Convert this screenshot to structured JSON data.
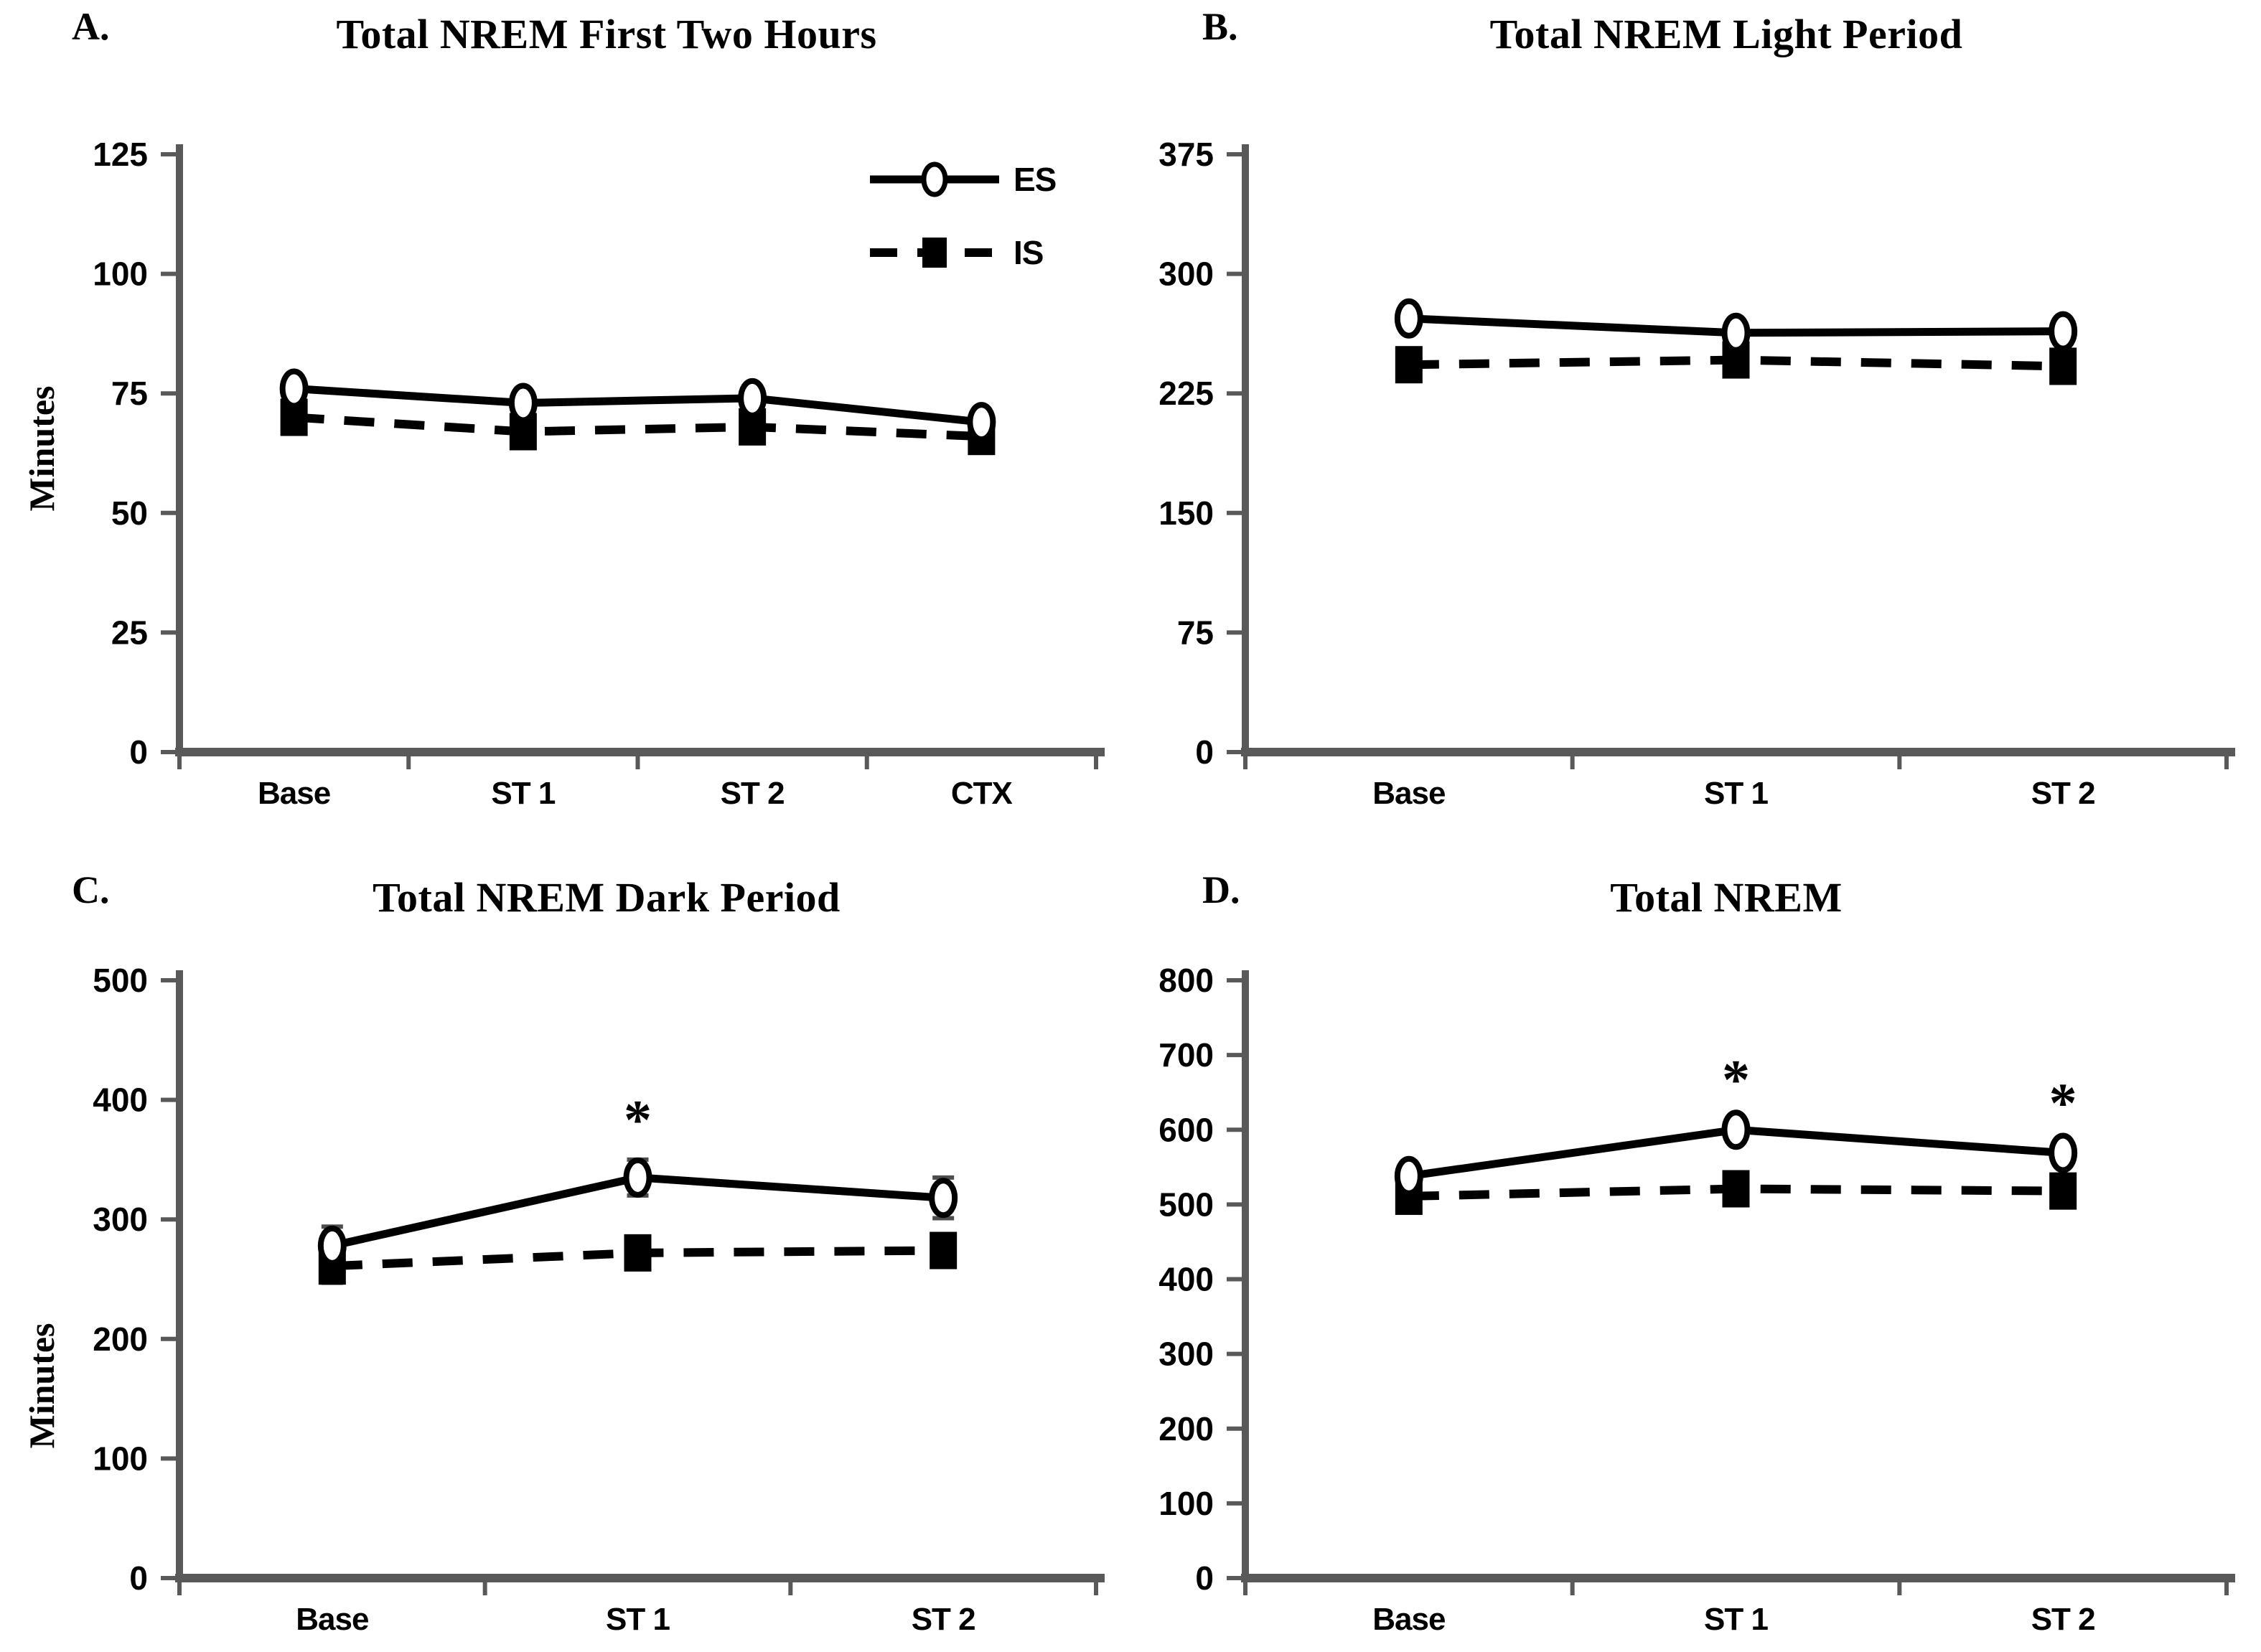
{
  "figure": {
    "background": "#ffffff",
    "axis_color": "#595959",
    "data_color": "#000000",
    "legend": {
      "entries": [
        {
          "label": "ES",
          "marker": "open-circle",
          "line": "solid"
        },
        {
          "label": "IS",
          "marker": "filled-square",
          "line": "dashed"
        }
      ]
    }
  },
  "chart_data": [
    {
      "panel": "A.",
      "type": "line",
      "title": "Total NREM First Two Hours",
      "ylabel": "Minutes",
      "xlabel": "",
      "ylim": [
        0,
        125
      ],
      "yticks": [
        0,
        25,
        50,
        75,
        100,
        125
      ],
      "categories": [
        "Base",
        "ST 1",
        "ST 2",
        "CTX"
      ],
      "grid": false,
      "legend_position": "upper-right-inside",
      "show_legend": true,
      "series": [
        {
          "name": "ES",
          "marker": "circle",
          "line": "solid",
          "values": [
            76,
            73,
            74,
            69
          ],
          "errors": [
            0,
            0,
            0,
            0
          ]
        },
        {
          "name": "IS",
          "marker": "square",
          "line": "dashed",
          "values": [
            70,
            67,
            68,
            66
          ],
          "errors": [
            0,
            0,
            0,
            0
          ]
        }
      ],
      "annotations": []
    },
    {
      "panel": "B.",
      "type": "line",
      "title": "Total NREM Light Period",
      "ylabel": "",
      "xlabel": "",
      "ylim": [
        0,
        375
      ],
      "yticks": [
        0,
        75,
        150,
        225,
        300,
        375
      ],
      "categories": [
        "Base",
        "ST 1",
        "ST 2"
      ],
      "grid": false,
      "show_legend": false,
      "series": [
        {
          "name": "ES",
          "marker": "circle",
          "line": "solid",
          "values": [
            272,
            263,
            264
          ],
          "errors": [
            0,
            0,
            0
          ]
        },
        {
          "name": "IS",
          "marker": "square",
          "line": "dashed",
          "values": [
            243,
            246,
            242
          ],
          "errors": [
            0,
            0,
            0
          ]
        }
      ],
      "annotations": []
    },
    {
      "panel": "C.",
      "type": "line",
      "title": "Total NREM Dark Period",
      "ylabel": "Minutes",
      "xlabel": "",
      "ylim": [
        0,
        500
      ],
      "yticks": [
        0,
        100,
        200,
        300,
        400,
        500
      ],
      "categories": [
        "Base",
        "ST 1",
        "ST 2"
      ],
      "grid": false,
      "show_legend": false,
      "series": [
        {
          "name": "ES",
          "marker": "circle",
          "line": "solid",
          "values": [
            278,
            335,
            318
          ],
          "errors": [
            16,
            15,
            17
          ]
        },
        {
          "name": "IS",
          "marker": "square",
          "line": "dashed",
          "values": [
            261,
            272,
            274
          ],
          "errors": [
            14,
            6,
            6
          ]
        }
      ],
      "annotations": [
        {
          "category": "ST 1",
          "text": "*",
          "y": 382
        }
      ]
    },
    {
      "panel": "D.",
      "type": "line",
      "title": "Total NREM",
      "ylabel": "",
      "xlabel": "",
      "ylim": [
        0,
        800
      ],
      "yticks": [
        0,
        100,
        200,
        300,
        400,
        500,
        600,
        700,
        800
      ],
      "categories": [
        "Base",
        "ST 1",
        "ST 2"
      ],
      "grid": false,
      "show_legend": false,
      "series": [
        {
          "name": "ES",
          "marker": "circle",
          "line": "solid",
          "values": [
            538,
            600,
            569
          ],
          "errors": [
            10,
            14,
            14
          ]
        },
        {
          "name": "IS",
          "marker": "square",
          "line": "dashed",
          "values": [
            511,
            521,
            518
          ],
          "errors": [
            14,
            6,
            6
          ]
        }
      ],
      "annotations": [
        {
          "category": "ST 1",
          "text": "*",
          "y": 665
        },
        {
          "category": "ST 2",
          "text": "*",
          "y": 634
        }
      ]
    }
  ]
}
